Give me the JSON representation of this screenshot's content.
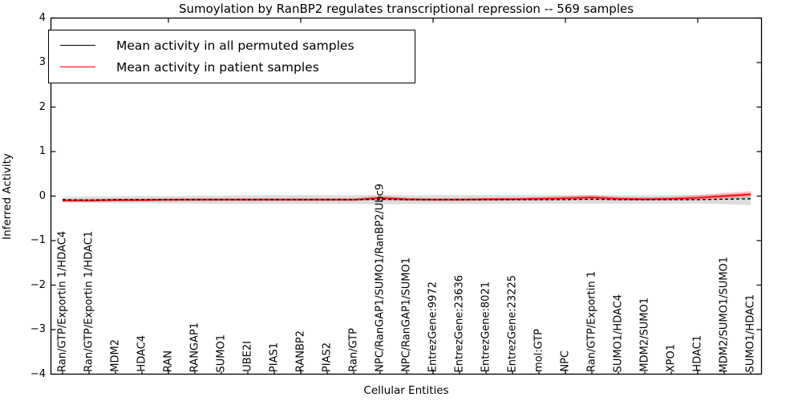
{
  "figure": {
    "title": "Sumoylation by RanBP2 regulates transcriptional repression -- 569 samples",
    "xlabel": "Cellular Entities",
    "ylabel": "Inferred Activity"
  },
  "legend": {
    "items": [
      {
        "label": "Mean activity in all permuted samples",
        "color": "#000000"
      },
      {
        "label": "Mean activity in patient samples",
        "color": "#ff0000"
      }
    ]
  },
  "chart_data": {
    "type": "line",
    "title": "Sumoylation by RanBP2 regulates transcriptional repression -- 569 samples",
    "xlabel": "Cellular Entities",
    "ylabel": "Inferred Activity",
    "ylim": [
      -4,
      4
    ],
    "grid": false,
    "legend_position": "upper left",
    "y_ticks": [
      {
        "label": "4",
        "value": 4
      },
      {
        "label": "3",
        "value": 3
      },
      {
        "label": "2",
        "value": 2
      },
      {
        "label": "1",
        "value": 1
      },
      {
        "label": "0",
        "value": 0
      },
      {
        "label": "−1",
        "value": -1
      },
      {
        "label": "−2",
        "value": -2
      },
      {
        "label": "−3",
        "value": -3
      },
      {
        "label": "−4",
        "value": -4
      }
    ],
    "x_major_ticks": [
      5,
      10,
      15,
      20,
      25
    ],
    "categories": [
      "Ran/GTP/Exportin 1/HDAC4",
      "Ran/GTP/Exportin 1/HDAC1",
      "MDM2",
      "HDAC4",
      "RAN",
      "RANGAP1",
      "SUMO1",
      "UBE2I",
      "PIAS1",
      "RANBP2",
      "PIAS2",
      "Ran/GTP",
      "NPC/RanGAP1/SUMO1/RanBP2/Ubc9",
      "NPC/RanGAP1/SUMO1",
      "EntrezGene:9972",
      "EntrezGene:23636",
      "EntrezGene:8021",
      "EntrezGene:23225",
      "mol:GTP",
      "NPC",
      "Ran/GTP/Exportin 1",
      "SUMO1/HDAC4",
      "MDM2/SUMO1",
      "XPO1",
      "HDAC1",
      "MDM2/SUMO1/SUMO1",
      "SUMO1/HDAC1"
    ],
    "series": [
      {
        "name": "Mean activity in all permuted samples",
        "color": "#000000",
        "style": "dashed",
        "values": [
          -0.08,
          -0.09,
          -0.08,
          -0.08,
          -0.08,
          -0.08,
          -0.08,
          -0.08,
          -0.08,
          -0.08,
          -0.08,
          -0.08,
          -0.07,
          -0.08,
          -0.08,
          -0.08,
          -0.08,
          -0.08,
          -0.08,
          -0.08,
          -0.07,
          -0.08,
          -0.08,
          -0.08,
          -0.08,
          -0.07,
          -0.06
        ]
      },
      {
        "name": "Mean activity in patient samples",
        "color": "#ff0000",
        "style": "solid",
        "values": [
          -0.1,
          -0.1,
          -0.09,
          -0.09,
          -0.08,
          -0.08,
          -0.08,
          -0.08,
          -0.08,
          -0.08,
          -0.08,
          -0.08,
          -0.04,
          -0.07,
          -0.08,
          -0.08,
          -0.07,
          -0.07,
          -0.06,
          -0.05,
          -0.03,
          -0.06,
          -0.07,
          -0.06,
          -0.04,
          0.0,
          0.04
        ]
      }
    ],
    "bands": [
      {
        "name": "permuted-samples-spread",
        "color": "#d9d9d9",
        "opacity": 0.9,
        "upper": [
          -0.02,
          -0.01,
          -0.01,
          0.0,
          0.0,
          0.01,
          0.01,
          0.02,
          0.02,
          0.02,
          0.02,
          0.02,
          0.03,
          0.02,
          0.02,
          0.02,
          0.02,
          0.02,
          0.02,
          0.02,
          0.03,
          0.02,
          0.02,
          0.02,
          0.03,
          0.04,
          0.06
        ],
        "lower": [
          -0.14,
          -0.15,
          -0.16,
          -0.16,
          -0.17,
          -0.17,
          -0.18,
          -0.18,
          -0.18,
          -0.18,
          -0.18,
          -0.18,
          -0.18,
          -0.18,
          -0.18,
          -0.18,
          -0.18,
          -0.17,
          -0.17,
          -0.17,
          -0.17,
          -0.17,
          -0.17,
          -0.17,
          -0.17,
          -0.18,
          -0.2
        ]
      },
      {
        "name": "patient-samples-spread",
        "color": "#ff0000",
        "opacity": 0.22,
        "upper": [
          -0.07,
          -0.07,
          -0.06,
          -0.06,
          -0.06,
          -0.05,
          -0.05,
          -0.05,
          -0.05,
          -0.05,
          -0.05,
          -0.05,
          0.0,
          -0.04,
          -0.05,
          -0.05,
          -0.04,
          -0.04,
          -0.02,
          0.0,
          0.02,
          -0.02,
          -0.03,
          -0.02,
          0.02,
          0.07,
          0.11
        ],
        "lower": [
          -0.13,
          -0.13,
          -0.12,
          -0.12,
          -0.12,
          -0.11,
          -0.11,
          -0.11,
          -0.11,
          -0.11,
          -0.11,
          -0.11,
          -0.09,
          -0.11,
          -0.11,
          -0.11,
          -0.11,
          -0.1,
          -0.1,
          -0.09,
          -0.08,
          -0.1,
          -0.1,
          -0.1,
          -0.09,
          -0.06,
          -0.04
        ]
      }
    ]
  }
}
